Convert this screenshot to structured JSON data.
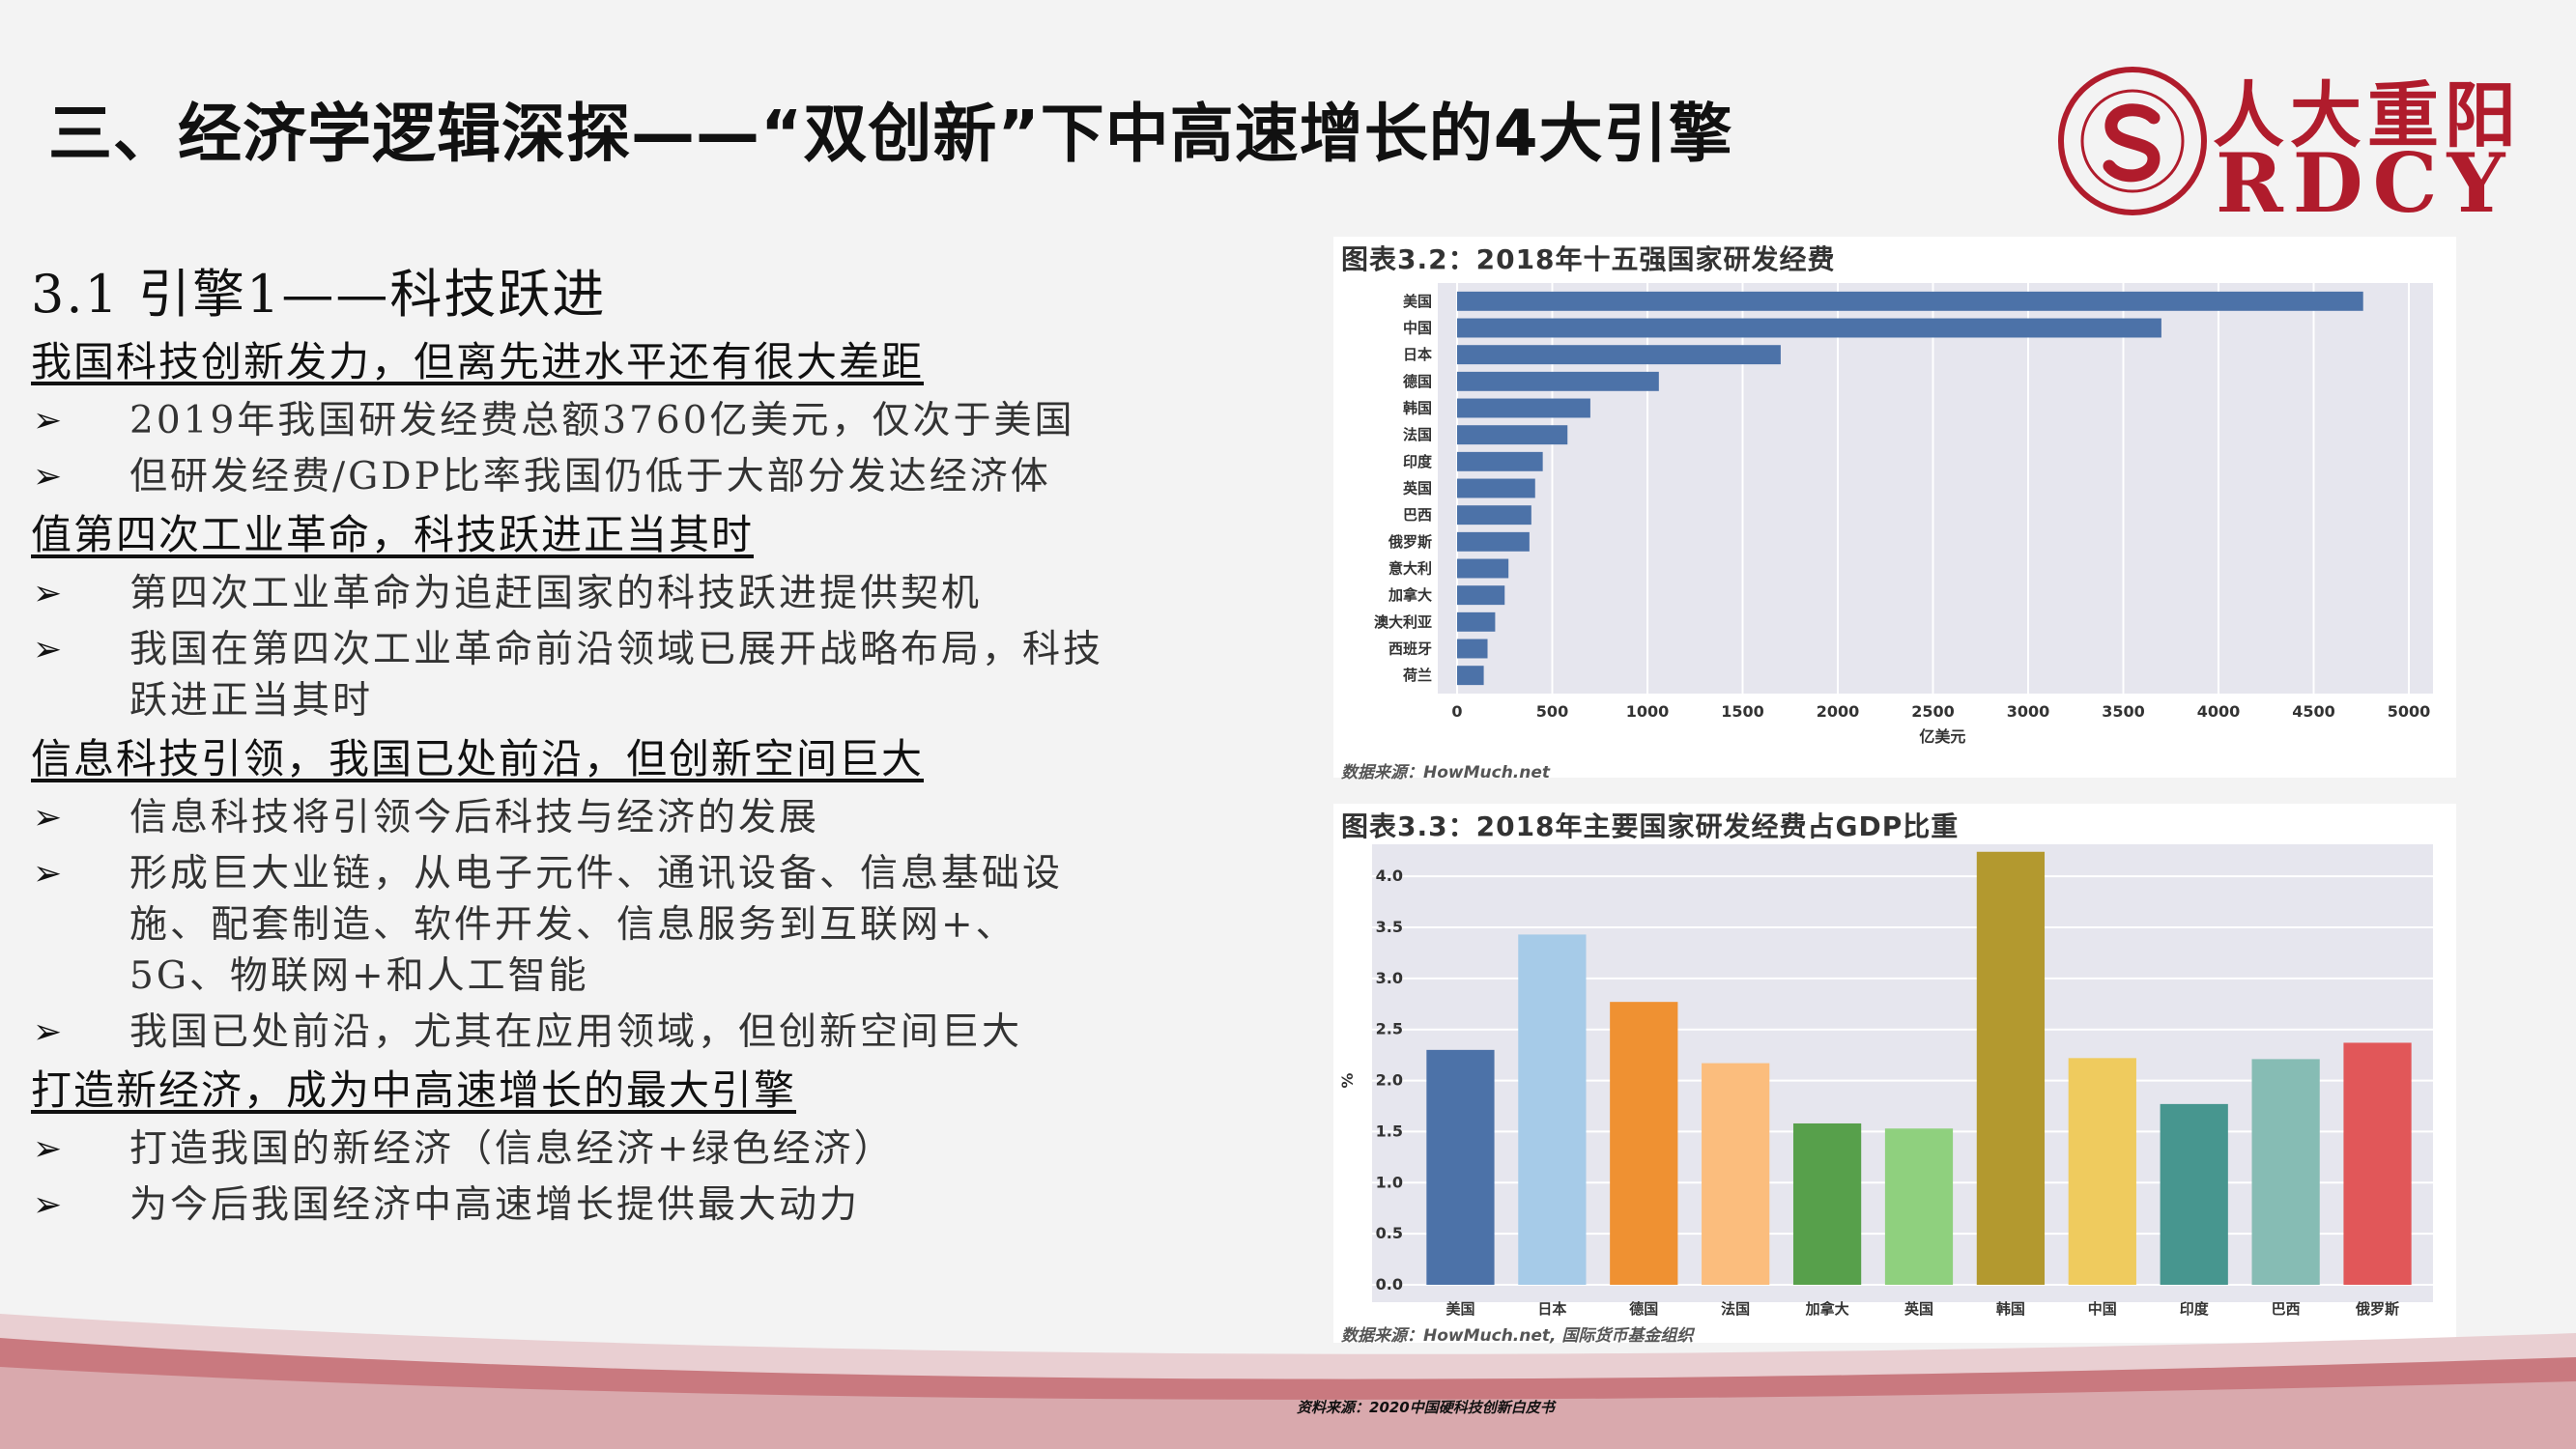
{
  "page": {
    "title": "三、经济学逻辑深探——“双创新”下中高速增长的4大引擎",
    "logo": {
      "cn": "人大重阳",
      "en": "RDCY"
    },
    "footer_source": "资料来源：2020中国硬科技创新白皮书"
  },
  "left": {
    "section_title": "3.1 引擎1——科技跃进",
    "bullet_marker": "➢",
    "blocks": [
      {
        "heading": "我国科技创新发力，但离先进水平还有很大差距",
        "bullets": [
          "2019年我国研发经费总额3760亿美元，仅次于美国",
          "但研发经费/GDP比率我国仍低于大部分发达经济体"
        ]
      },
      {
        "heading": "值第四次工业革命，科技跃进正当其时",
        "bullets": [
          "第四次工业革命为追赶国家的科技跃进提供契机",
          "我国在第四次工业革命前沿领域已展开战略布局，科技跃进正当其时"
        ]
      },
      {
        "heading": "信息科技引领，我国已处前沿，但创新空间巨大",
        "bullets": [
          "信息科技将引领今后科技与经济的发展",
          "形成巨大业链，从电子元件、通讯设备、信息基础设施、配套制造、软件开发、信息服务到互联网+、5G、物联网+和人工智能",
          "我国已处前沿，尤其在应用领域，但创新空间巨大"
        ]
      },
      {
        "heading": "打造新经济，成为中高速增长的最大引擎",
        "bullets": [
          "打造我国的新经济（信息经济+绿色经济）",
          "为今后我国经济中高速增长提供最大动力"
        ]
      }
    ]
  },
  "chart_data": [
    {
      "type": "bar",
      "orientation": "horizontal",
      "title": "图表3.2：2018年十五强国家研发经费",
      "xlabel": "亿美元",
      "ylabel": "",
      "xlim": [
        0,
        5000
      ],
      "ticks": [
        "0",
        "500",
        "1000",
        "1500",
        "2000",
        "2500",
        "3000",
        "3500",
        "4000",
        "4500",
        "5000"
      ],
      "categories": [
        "美国",
        "中国",
        "日本",
        "德国",
        "韩国",
        "法国",
        "印度",
        "英国",
        "巴西",
        "俄罗斯",
        "意大利",
        "加拿大",
        "澳大利亚",
        "西班牙",
        "荷兰"
      ],
      "values": [
        4760,
        3700,
        1700,
        1060,
        700,
        580,
        450,
        410,
        390,
        380,
        270,
        250,
        200,
        160,
        140
      ],
      "color": "#4c72a8",
      "source": "数据来源：HowMuch.net"
    },
    {
      "type": "bar",
      "title": "图表3.3：2018年主要国家研发经费占GDP比重",
      "xlabel": "",
      "ylabel": "%",
      "ylim": [
        0,
        4.2
      ],
      "ticks": [
        "0.0",
        "0.5",
        "1.0",
        "1.5",
        "2.0",
        "2.5",
        "3.0",
        "3.5",
        "4.0"
      ],
      "categories": [
        "美国",
        "日本",
        "德国",
        "法国",
        "加拿大",
        "英国",
        "韩国",
        "中国",
        "印度",
        "巴西",
        "俄罗斯"
      ],
      "values": [
        2.3,
        3.43,
        2.77,
        2.17,
        1.58,
        1.53,
        4.24,
        2.22,
        1.77,
        2.21,
        2.37
      ],
      "colors": [
        "#4c72a8",
        "#a6cbe8",
        "#ef9132",
        "#fbbd7d",
        "#57a04b",
        "#8fd07e",
        "#b3992f",
        "#efcb5e",
        "#47968f",
        "#86bcb4",
        "#e15759"
      ],
      "source": "数据来源：HowMuch.net, 国际货币基金组织"
    }
  ]
}
